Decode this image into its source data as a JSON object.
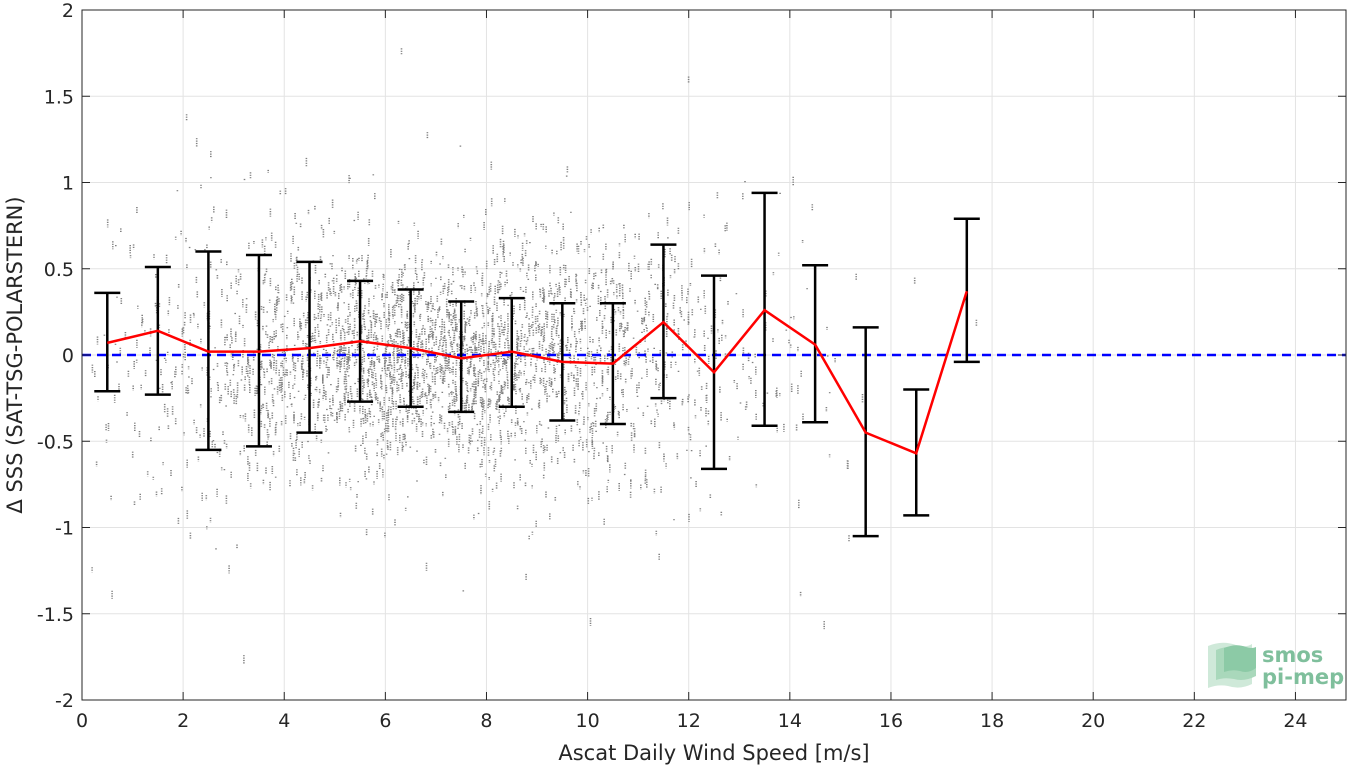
{
  "chart_data": {
    "type": "scatter",
    "xlabel": "Ascat Daily Wind Speed [m/s]",
    "ylabel": "Δ SSS (SAT-TSG-POLARSTERN)",
    "xlim": [
      0,
      25
    ],
    "ylim": [
      -2,
      2
    ],
    "x_ticks": [
      0,
      2,
      4,
      6,
      8,
      10,
      12,
      14,
      16,
      18,
      20,
      22,
      24
    ],
    "y_ticks": [
      -2,
      -1.5,
      -1,
      -0.5,
      0,
      0.5,
      1,
      1.5,
      2
    ],
    "y_tick_labels": [
      "-2",
      "-1.5",
      "-1",
      "-0.5",
      "0",
      "0.5",
      "1",
      "1.5",
      "2"
    ],
    "grid": true,
    "colors": {
      "scatter": "#808080",
      "mean_line": "#ff0000",
      "error_bars": "#000000",
      "zero_line": "#0000ff"
    },
    "scatter_cloud": {
      "x_range": [
        0,
        18
      ],
      "y_range": [
        -2,
        2
      ],
      "center_x": 7,
      "center_y": 0,
      "point_count": 7000
    },
    "bins": {
      "x": [
        0.5,
        1.5,
        2.5,
        3.5,
        4.5,
        5.5,
        6.5,
        7.5,
        8.5,
        9.5,
        10.5,
        11.5,
        12.5,
        13.5,
        14.5,
        15.5,
        16.5,
        17.5
      ],
      "mean": [
        0.07,
        0.14,
        0.02,
        0.02,
        0.04,
        0.08,
        0.04,
        -0.02,
        0.02,
        -0.04,
        -0.05,
        0.19,
        -0.1,
        0.26,
        0.06,
        -0.45,
        -0.57,
        0.37
      ],
      "upper": [
        0.36,
        0.51,
        0.6,
        0.58,
        0.54,
        0.43,
        0.38,
        0.31,
        0.33,
        0.3,
        0.3,
        0.64,
        0.46,
        0.94,
        0.52,
        0.16,
        -0.2,
        0.79
      ],
      "lower": [
        -0.21,
        -0.23,
        -0.55,
        -0.53,
        -0.45,
        -0.27,
        -0.3,
        -0.33,
        -0.3,
        -0.38,
        -0.4,
        -0.25,
        -0.66,
        -0.41,
        -0.39,
        -1.05,
        -0.93,
        -0.04
      ]
    },
    "reference_line": {
      "y": 0,
      "style": "dashed"
    }
  },
  "logo": {
    "line1": "smos",
    "line2": "pi-mep"
  }
}
